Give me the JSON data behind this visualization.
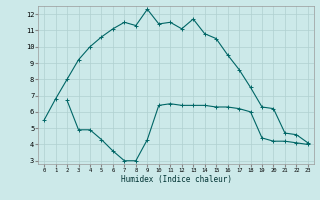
{
  "xlabel": "Humidex (Indice chaleur)",
  "bg_color": "#cce9e9",
  "grid_color": "#b0d0d0",
  "line_color": "#006666",
  "line1_x": [
    0,
    1,
    2,
    3,
    4,
    5,
    6,
    7,
    8,
    9,
    10,
    11,
    12,
    13,
    14,
    15,
    16,
    17,
    18,
    19,
    20,
    21,
    22,
    23
  ],
  "line1_y": [
    5.5,
    6.8,
    8.0,
    9.2,
    10.0,
    10.6,
    11.1,
    11.5,
    11.3,
    12.3,
    11.4,
    11.5,
    11.1,
    11.7,
    10.8,
    10.5,
    9.5,
    8.6,
    7.5,
    6.3,
    6.2,
    4.7,
    4.6,
    4.1
  ],
  "line2_x": [
    2,
    3,
    4,
    5,
    6,
    7,
    8,
    9,
    10,
    11,
    12,
    13,
    14,
    15,
    16,
    17,
    18,
    19,
    20,
    21,
    22,
    23
  ],
  "line2_y": [
    6.7,
    4.9,
    4.9,
    4.3,
    3.6,
    3.0,
    3.0,
    4.3,
    6.4,
    6.5,
    6.4,
    6.4,
    6.4,
    6.3,
    6.3,
    6.2,
    6.0,
    4.4,
    4.2,
    4.2,
    4.1,
    4.0
  ],
  "xlim": [
    -0.5,
    23.5
  ],
  "ylim": [
    2.8,
    12.5
  ],
  "yticks": [
    3,
    4,
    5,
    6,
    7,
    8,
    9,
    10,
    11,
    12
  ],
  "xticks": [
    0,
    1,
    2,
    3,
    4,
    5,
    6,
    7,
    8,
    9,
    10,
    11,
    12,
    13,
    14,
    15,
    16,
    17,
    18,
    19,
    20,
    21,
    22,
    23
  ]
}
